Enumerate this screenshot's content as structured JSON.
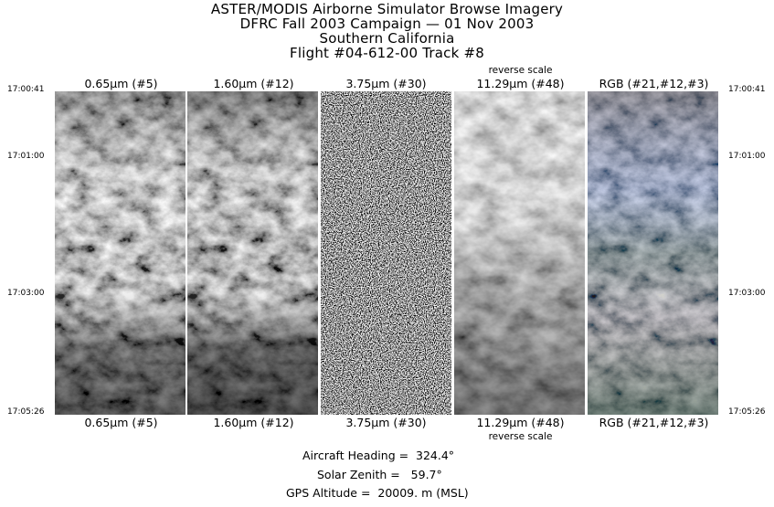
{
  "title_lines": [
    "ASTER/MODIS Airborne Simulator Browse Imagery",
    "DFRC Fall 2003 Campaign — 01 Nov 2003",
    "Southern California",
    "Flight #04-612-00 Track #8"
  ],
  "bands": [
    {
      "label": "0.65μm (#5)",
      "reverse_scale": ""
    },
    {
      "label": "1.60μm (#12)",
      "reverse_scale": ""
    },
    {
      "label": "3.75μm (#30)",
      "reverse_scale": ""
    },
    {
      "label": "11.29μm (#48)",
      "reverse_scale": "reverse scale"
    },
    {
      "label": "RGB (#21,#12,#3)",
      "reverse_scale": ""
    }
  ],
  "times": [
    "17:00:41",
    "17:01:00",
    "17:03:00",
    "17:05:26"
  ],
  "footer": {
    "heading": "Aircraft Heading =  324.4°",
    "zenith": "Solar Zenith =   59.7°",
    "altitude": "GPS Altitude =  20009. m (MSL)"
  }
}
